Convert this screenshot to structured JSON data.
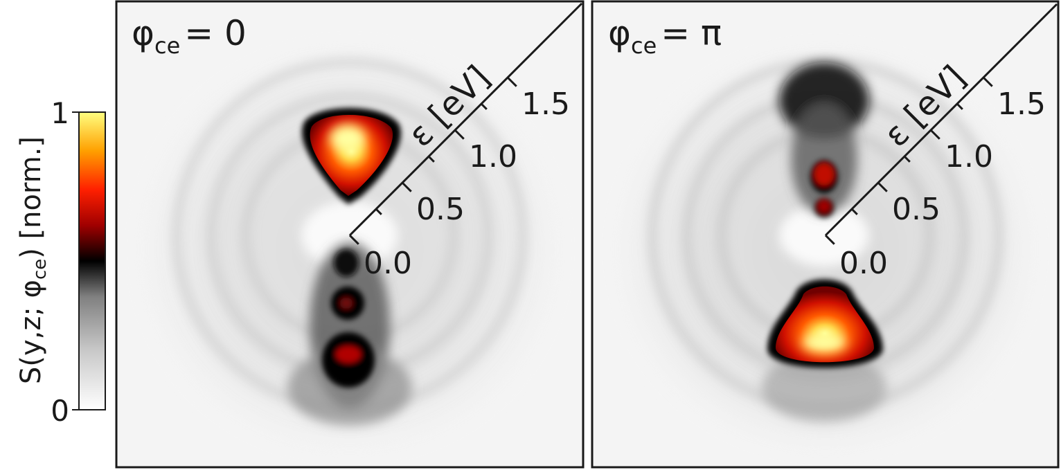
{
  "colorbar": {
    "label_main": "S(y,z; φ",
    "label_sub": "ce",
    "label_tail": ") [norm.]",
    "tick_max": "1",
    "tick_min": "0",
    "colormap": [
      "#ffffff",
      "#c8c8c8",
      "#808080",
      "#000000",
      "#a00000",
      "#ff2000",
      "#ffa000",
      "#ffff80"
    ]
  },
  "chart_data": [
    {
      "type": "heatmap",
      "panel_label": {
        "symbol": "φ",
        "sub": "ce",
        "value": "= 0"
      },
      "axis": {
        "label": "ε [eV]",
        "ticks": [
          "0.0",
          "0.5",
          "1.0",
          "1.5"
        ],
        "range": [
          0,
          1.5
        ],
        "orientation": "diagonal"
      },
      "color_range": [
        0,
        1
      ],
      "features": [
        {
          "region": "upper lobe",
          "max_value": 1.0
        },
        {
          "region": "lower lobe",
          "max_value": 0.6
        }
      ]
    },
    {
      "type": "heatmap",
      "panel_label": {
        "symbol": "φ",
        "sub": "ce",
        "value": "= π"
      },
      "axis": {
        "label": "ε [eV]",
        "ticks": [
          "0.0",
          "0.5",
          "1.0",
          "1.5"
        ],
        "range": [
          0,
          1.5
        ],
        "orientation": "diagonal"
      },
      "color_range": [
        0,
        1
      ],
      "features": [
        {
          "region": "upper lobe",
          "max_value": 0.65
        },
        {
          "region": "lower lobe",
          "max_value": 1.0
        }
      ]
    }
  ]
}
